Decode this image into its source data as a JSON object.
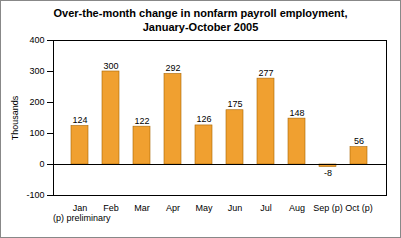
{
  "chart_data": {
    "type": "bar",
    "title": "Over-the-month change in nonfarm payroll employment, January-October 2005",
    "y_label": "Thousands",
    "categories": [
      "Jan",
      "Feb",
      "Mar",
      "Apr",
      "May",
      "Jun",
      "Jul",
      "Aug",
      "Sep (p)",
      "Oct (p)"
    ],
    "values": [
      124,
      300,
      122,
      292,
      126,
      175,
      277,
      148,
      -8,
      56
    ],
    "color": "#f0a030",
    "ylim": [
      -100,
      400
    ],
    "yticks": [
      -100,
      0,
      100,
      200,
      300,
      400
    ],
    "grid": false,
    "data_labels": true,
    "annotations": [
      "(p) preliminary"
    ]
  }
}
